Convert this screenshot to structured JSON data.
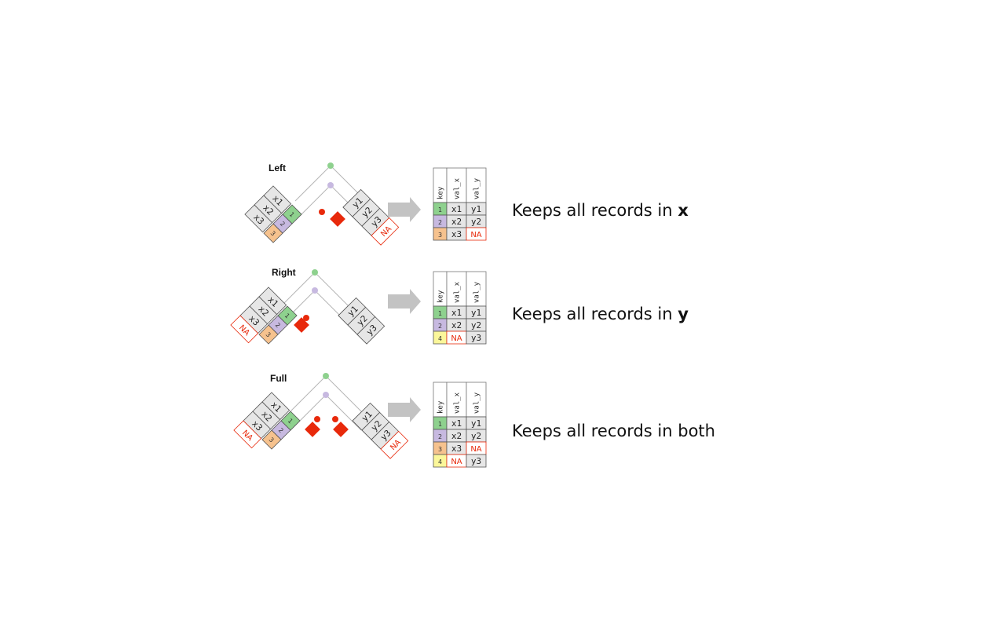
{
  "colors": {
    "k1": "#8ed18e",
    "k2": "#c7b9e0",
    "k3": "#f6c28e",
    "k4": "#fbf79a",
    "value": "#e6e6e6",
    "na": "#e8290b",
    "line": "#b5b5b5",
    "arrow": "#c3c3c3"
  },
  "joins": [
    {
      "title": "Left",
      "description": "Keeps all records in ",
      "description_bold": "x",
      "x_table": [
        [
          "1",
          "x1"
        ],
        [
          "2",
          "x2"
        ],
        [
          "3",
          "x3"
        ]
      ],
      "y_table": [
        [
          "1",
          "y1"
        ],
        [
          "2",
          "y2"
        ],
        [
          "4",
          "y3"
        ]
      ],
      "x_na": false,
      "y_na": true,
      "dots": [
        "k1",
        "k2",
        "na"
      ],
      "headers": [
        "key",
        "val_x",
        "val_y"
      ],
      "result_rows": [
        [
          "1",
          "x1",
          "y1"
        ],
        [
          "2",
          "x2",
          "y2"
        ],
        [
          "3",
          "x3",
          "NA"
        ]
      ]
    },
    {
      "title": "Right",
      "description": "Keeps all records in ",
      "description_bold": "y",
      "x_table": [
        [
          "1",
          "x1"
        ],
        [
          "2",
          "x2"
        ],
        [
          "3",
          "x3"
        ]
      ],
      "y_table": [
        [
          "1",
          "y1"
        ],
        [
          "2",
          "y2"
        ],
        [
          "4",
          "y3"
        ]
      ],
      "x_na": true,
      "y_na": false,
      "dots": [
        "k1",
        "k2",
        "na"
      ],
      "headers": [
        "key",
        "val_x",
        "val_y"
      ],
      "result_rows": [
        [
          "1",
          "x1",
          "y1"
        ],
        [
          "2",
          "x2",
          "y2"
        ],
        [
          "4",
          "NA",
          "y3"
        ]
      ]
    },
    {
      "title": "Full",
      "description": "Keeps all records in both",
      "description_bold": "",
      "x_table": [
        [
          "1",
          "x1"
        ],
        [
          "2",
          "x2"
        ],
        [
          "3",
          "x3"
        ]
      ],
      "y_table": [
        [
          "1",
          "y1"
        ],
        [
          "2",
          "y2"
        ],
        [
          "4",
          "y3"
        ]
      ],
      "x_na": true,
      "y_na": true,
      "dots": [
        "k1",
        "k2",
        "na",
        "na"
      ],
      "headers": [
        "key",
        "val_x",
        "val_y"
      ],
      "result_rows": [
        [
          "1",
          "x1",
          "y1"
        ],
        [
          "2",
          "x2",
          "y2"
        ],
        [
          "3",
          "x3",
          "NA"
        ],
        [
          "4",
          "NA",
          "y3"
        ]
      ]
    }
  ]
}
